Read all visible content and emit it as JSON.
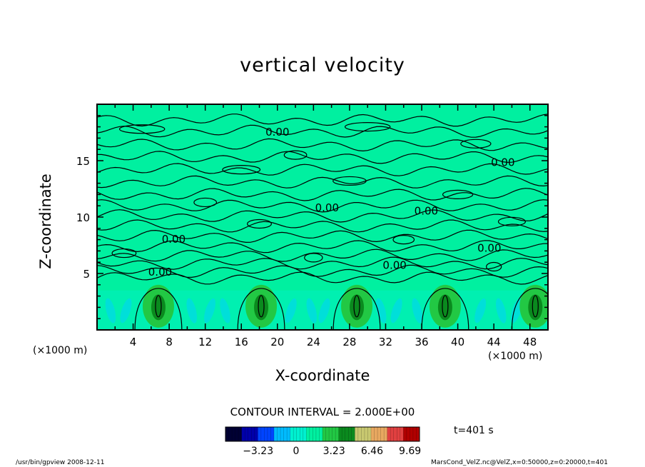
{
  "chart_data": {
    "type": "heatmap",
    "title": "vertical velocity",
    "xlabel": "X-coordinate",
    "ylabel": "Z-coordinate",
    "x_unit_label": "(×1000 m)",
    "x_ticks": [
      4,
      8,
      12,
      16,
      20,
      24,
      28,
      32,
      36,
      40,
      44,
      48
    ],
    "y_ticks": [
      5,
      10,
      15
    ],
    "xlim": [
      0,
      50
    ],
    "ylim": [
      0,
      20
    ],
    "contour_interval_text": "CONTOUR INTERVAL = 2.000E+00",
    "contour_labels": [
      "0.00",
      "0.00",
      "0.00",
      "0.00",
      "0.00",
      "0.00",
      "0.00",
      "0.00"
    ],
    "contour_label_points": [
      [
        20,
        17.5
      ],
      [
        45,
        14.8
      ],
      [
        25.5,
        10.8
      ],
      [
        36.5,
        10.5
      ],
      [
        8.5,
        8.0
      ],
      [
        43.5,
        7.2
      ],
      [
        33,
        5.7
      ],
      [
        7,
        5.1
      ]
    ],
    "updraft_cores_x": [
      6.8,
      18.2,
      28.8,
      38.6,
      48.6
    ],
    "colorbar": {
      "ticks": [
        -3.23,
        0,
        3.23,
        6.46,
        9.69
      ],
      "tick_labels": [
        "−3.23",
        "0",
        "3.23",
        "6.46",
        "9.69"
      ],
      "range": [
        -6.0,
        10.5
      ],
      "colors": [
        "#000033",
        "#0000aa",
        "#0044ff",
        "#00bbff",
        "#00f0d0",
        "#00f0a0",
        "#22c844",
        "#0a8a1e",
        "#c8c870",
        "#e8a860",
        "#e04040",
        "#b00000"
      ]
    },
    "field_color": "#00f0a0",
    "time_label": "t=401 s"
  },
  "footer": {
    "left": "/usr/bin/gpview  2008-12-11",
    "right": "MarsCond_VelZ.nc@VelZ,x=0:50000,z=0:20000,t=401"
  }
}
